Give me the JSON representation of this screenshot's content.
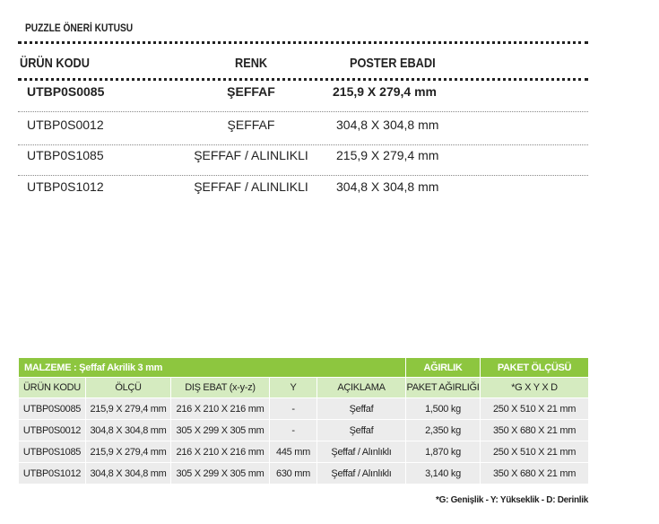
{
  "summary": {
    "title": "PUZZLE ÖNERİ KUTUSU",
    "headers": [
      "ÜRÜN KODU",
      "RENK",
      "POSTER EBADI"
    ],
    "rows": [
      [
        "UTBP0S0085",
        "ŞEFFAF",
        "215,9 X 279,4 mm"
      ],
      [
        "UTBP0S0012",
        "ŞEFFAF",
        "304,8 X 304,8 mm"
      ],
      [
        "UTBP0S1085",
        "ŞEFFAF / ALINLIKLI",
        "215,9 X 279,4 mm"
      ],
      [
        "UTBP0S1012",
        "ŞEFFAF / ALINLIKLI",
        "304,8 X 304,8 mm"
      ]
    ]
  },
  "spec": {
    "material": "MALZEME : Şeffaf Akrilik 3 mm",
    "weight_group": "AĞIRLIK",
    "package_group": "PAKET ÖLÇÜSÜ",
    "headers": [
      "ÜRÜN KODU",
      "ÖLÇÜ",
      "DIŞ EBAT (x-y-z)",
      "Y",
      "AÇIKLAMA",
      "PAKET AĞIRLIĞI",
      "*G X Y X D"
    ],
    "rows": [
      [
        "UTBP0S0085",
        "215,9 X 279,4 mm",
        "216 X 210 X 216 mm",
        "-",
        "Şeffaf",
        "1,500 kg",
        "250 X 510 X 21 mm"
      ],
      [
        "UTBP0S0012",
        "304,8 X 304,8 mm",
        "305 X 299 X 305 mm",
        "-",
        "Şeffaf",
        "2,350 kg",
        "350 X 680 X 21 mm"
      ],
      [
        "UTBP0S1085",
        "215,9 X 279,4 mm",
        "216 X 210 X 216 mm",
        "445 mm",
        "Şeffaf / Alınlıklı",
        "1,870 kg",
        "250 X 510 X 21 mm"
      ],
      [
        "UTBP0S1012",
        "304,8 X 304,8 mm",
        "305 X 299 X 305 mm",
        "630 mm",
        "Şeffaf / Alınlıklı",
        "3,140 kg",
        "350 X 680 X 21 mm"
      ]
    ],
    "header_color": "#8dc63f",
    "subheader_color": "#d5ebc0",
    "row_color": "#ececec"
  },
  "footnote": "*G: Genişlik  - Y: Yükseklik  -  D: Derinlik"
}
